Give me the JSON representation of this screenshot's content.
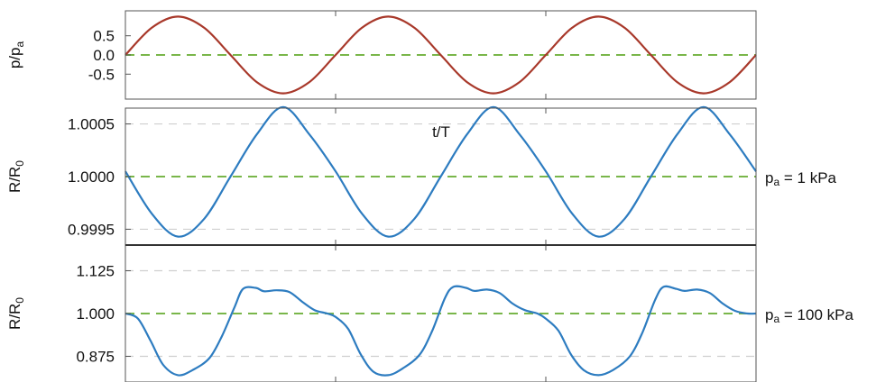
{
  "chart_data": [
    {
      "type": "line",
      "title": "",
      "xlabel": "",
      "ylabel": "p/p",
      "ylabel_sub": "a",
      "xlim": [
        0,
        3
      ],
      "ylim": [
        -1.15,
        1.15
      ],
      "y_ticks": [
        0.5,
        0.0,
        -0.5
      ],
      "y_tick_labels": [
        "0.5",
        "0.0",
        "-0.5"
      ],
      "x_ticks": [
        1,
        2
      ],
      "grid": false,
      "reference_line": 0.0,
      "side_label": "",
      "series": [
        {
          "x": [
            0,
            0.125,
            0.25,
            0.375,
            0.5,
            0.625,
            0.75,
            0.875,
            1.0,
            1.125,
            1.25,
            1.375,
            1.5,
            1.625,
            1.75,
            1.875,
            2.0,
            2.125,
            2.25,
            2.375,
            2.5,
            2.625,
            2.75,
            2.875,
            3.0
          ],
          "y": [
            0,
            0.707,
            1.0,
            0.707,
            0,
            -0.707,
            -1.0,
            -0.707,
            0,
            0.707,
            1.0,
            0.707,
            0,
            -0.707,
            -1.0,
            -0.707,
            0,
            0.707,
            1.0,
            0.707,
            0,
            -0.707,
            -1.0,
            -0.707,
            0
          ]
        }
      ]
    },
    {
      "type": "line",
      "title": "",
      "xlabel": "t/T",
      "ylabel": "R/R",
      "ylabel_sub": "0",
      "xlim": [
        0,
        3
      ],
      "ylim": [
        0.99935,
        1.00065
      ],
      "y_ticks": [
        1.0005,
        1.0,
        0.9995
      ],
      "y_tick_labels": [
        "1.0005",
        "1.0000",
        "0.9995"
      ],
      "x_ticks": [
        1,
        2
      ],
      "grid": true,
      "reference_line": 1.0,
      "side_label": "p",
      "side_label_sub": "a",
      "side_label_rest": " = 1 kPa",
      "series": [
        {
          "x": [
            0,
            0.125,
            0.25,
            0.375,
            0.5,
            0.625,
            0.75,
            0.875,
            1.0,
            1.125,
            1.25,
            1.375,
            1.5,
            1.625,
            1.75,
            1.875,
            2.0,
            2.125,
            2.25,
            2.375,
            2.5,
            2.625,
            2.75,
            2.875,
            3.0
          ],
          "y": [
            1.00005,
            0.99965,
            0.99943,
            0.9996,
            1.0,
            1.0004,
            1.00066,
            1.0004,
            1.00005,
            0.99965,
            0.99943,
            0.9996,
            1.0,
            1.0004,
            1.00066,
            1.0004,
            1.00005,
            0.99965,
            0.99943,
            0.9996,
            1.0,
            1.0004,
            1.00066,
            1.0004,
            1.00005
          ]
        }
      ]
    },
    {
      "type": "line",
      "title": "",
      "xlabel": "",
      "ylabel": "R/R",
      "ylabel_sub": "0",
      "xlim": [
        0,
        3
      ],
      "ylim": [
        0.8,
        1.2
      ],
      "y_ticks": [
        1.125,
        1.0,
        0.875
      ],
      "y_tick_labels": [
        "1.125",
        "1.000",
        "0.875"
      ],
      "x_ticks": [
        1,
        2
      ],
      "grid": true,
      "reference_line": 1.0,
      "side_label": "p",
      "side_label_sub": "a",
      "side_label_rest": " = 100 kPa",
      "series": [
        {
          "x": [
            0,
            0.06,
            0.12,
            0.18,
            0.25,
            0.32,
            0.4,
            0.46,
            0.52,
            0.56,
            0.62,
            0.66,
            0.72,
            0.78,
            0.84,
            0.9,
            0.96,
            1.0,
            1.06,
            1.12,
            1.18,
            1.25,
            1.32,
            1.4,
            1.46,
            1.52,
            1.56,
            1.62,
            1.66,
            1.72,
            1.78,
            1.84,
            1.9,
            1.96,
            2.0,
            2.06,
            2.12,
            2.18,
            2.25,
            2.32,
            2.4,
            2.46,
            2.52,
            2.56,
            2.62,
            2.66,
            2.72,
            2.78,
            2.84,
            2.9,
            2.96,
            3.0
          ],
          "y": [
            1.0,
            0.985,
            0.92,
            0.85,
            0.82,
            0.835,
            0.87,
            0.935,
            1.02,
            1.072,
            1.075,
            1.065,
            1.068,
            1.063,
            1.035,
            1.01,
            1.0,
            0.99,
            0.955,
            0.88,
            0.83,
            0.82,
            0.84,
            0.88,
            0.95,
            1.045,
            1.078,
            1.075,
            1.066,
            1.07,
            1.06,
            1.03,
            1.01,
            1.0,
            0.985,
            0.95,
            0.88,
            0.835,
            0.82,
            0.835,
            0.875,
            0.945,
            1.04,
            1.078,
            1.072,
            1.066,
            1.07,
            1.06,
            1.03,
            1.008,
            1.0,
            1.0
          ]
        }
      ]
    }
  ],
  "colors": {
    "pressure_line": "#a8382a",
    "radius_line": "#2d7cc0",
    "reference_dash": "#79b64a",
    "grid_dash": "#cfcfcf",
    "frame": "#555555",
    "divider": "#333333"
  }
}
